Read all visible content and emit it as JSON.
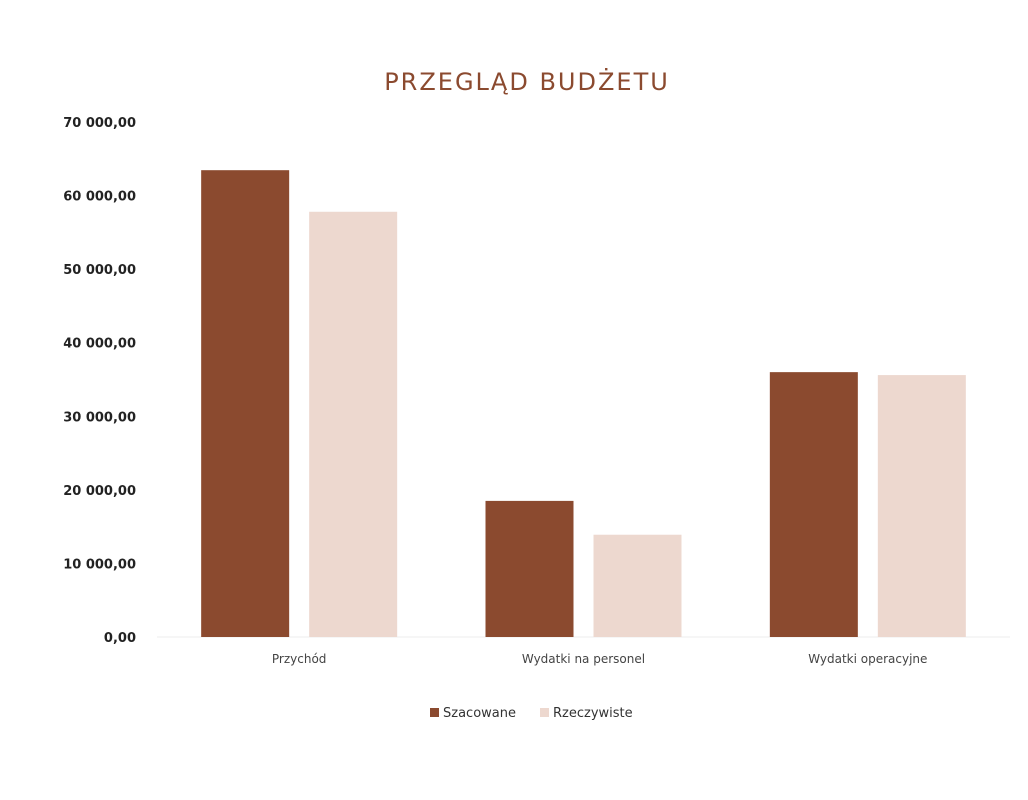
{
  "chart_data": {
    "type": "bar",
    "title": "PRZEGLĄD BUDŻETU",
    "xlabel": "",
    "ylabel": "",
    "categories": [
      "Przychód",
      "Wydatki na personel",
      "Wydatki operacyjne"
    ],
    "series": [
      {
        "name": "Szacowane",
        "values": [
          63450,
          18500,
          36000
        ],
        "color": "#8B4A2F"
      },
      {
        "name": "Rzeczywiste",
        "values": [
          57800,
          13900,
          35600
        ],
        "color": "#EDD8CF"
      }
    ],
    "ylim": [
      0,
      70000
    ],
    "yticks": [
      0,
      10000,
      20000,
      30000,
      40000,
      50000,
      60000,
      70000
    ],
    "ytick_labels": [
      "0,00",
      "10 000,00",
      "20 000,00",
      "30 000,00",
      "40 000,00",
      "50 000,00",
      "60 000,00",
      "70 000,00"
    ],
    "grid": false,
    "legend": "bottom"
  }
}
